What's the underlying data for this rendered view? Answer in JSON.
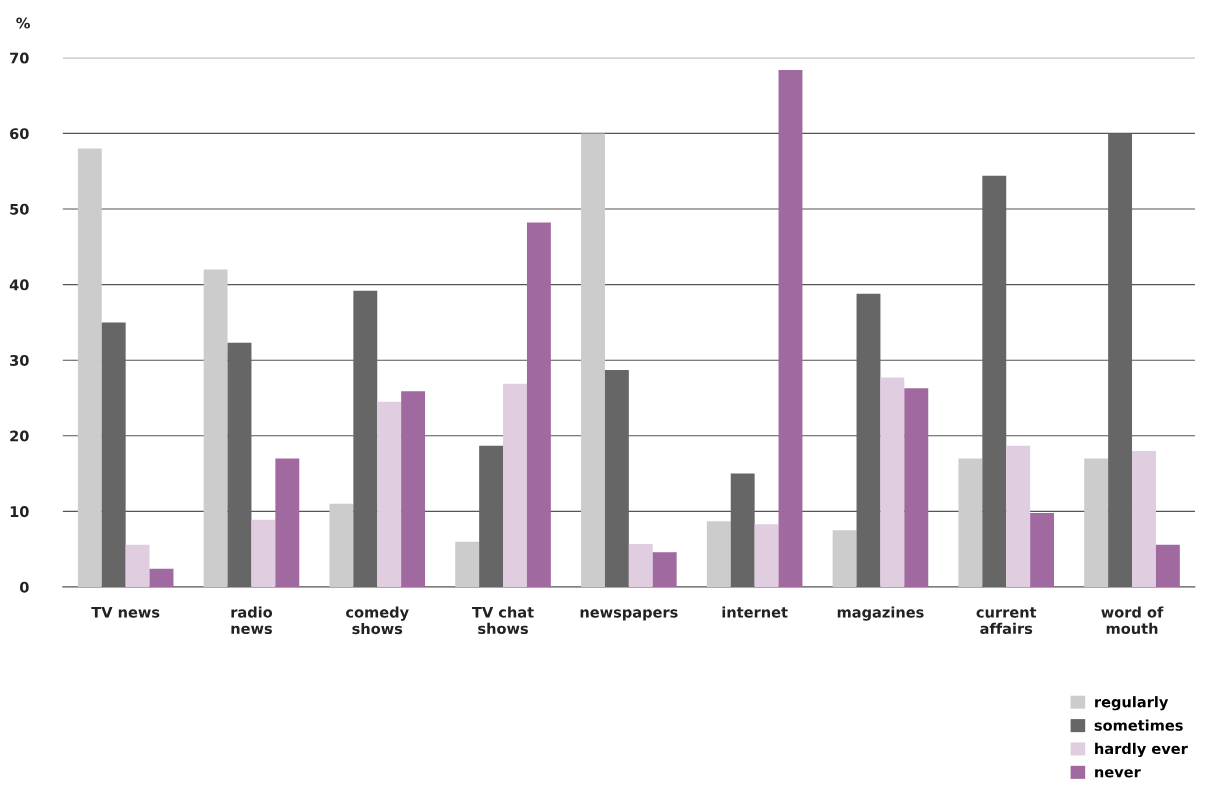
{
  "chart_data": {
    "type": "bar",
    "ylabel": "%",
    "categories": [
      "TV news",
      "radio\nnews",
      "comedy\nshows",
      "TV chat\nshows",
      "newspapers",
      "internet",
      "magazines",
      "current\naffairs",
      "word of\nmouth"
    ],
    "series": [
      {
        "name": "regularly",
        "color": "#cccccc",
        "values": [
          58,
          42,
          11,
          6,
          60,
          8.7,
          7.5,
          17,
          17
        ]
      },
      {
        "name": "sometimes",
        "color": "#666666",
        "values": [
          35,
          32.3,
          39.2,
          18.7,
          28.7,
          15,
          38.8,
          54.4,
          60
        ]
      },
      {
        "name": "hardly ever",
        "color": "#e0cde0",
        "values": [
          5.6,
          8.9,
          24.5,
          26.9,
          5.7,
          8.3,
          27.7,
          18.7,
          18
        ]
      },
      {
        "name": "never",
        "color": "#a0699f",
        "values": [
          2.4,
          17,
          25.9,
          48.2,
          4.6,
          68.4,
          26.3,
          9.8,
          5.6
        ]
      }
    ],
    "ylim": [
      0,
      70
    ],
    "yticks": [
      0,
      10,
      20,
      30,
      40,
      50,
      60,
      70
    ],
    "grid": "y",
    "legend": "bottom right"
  }
}
